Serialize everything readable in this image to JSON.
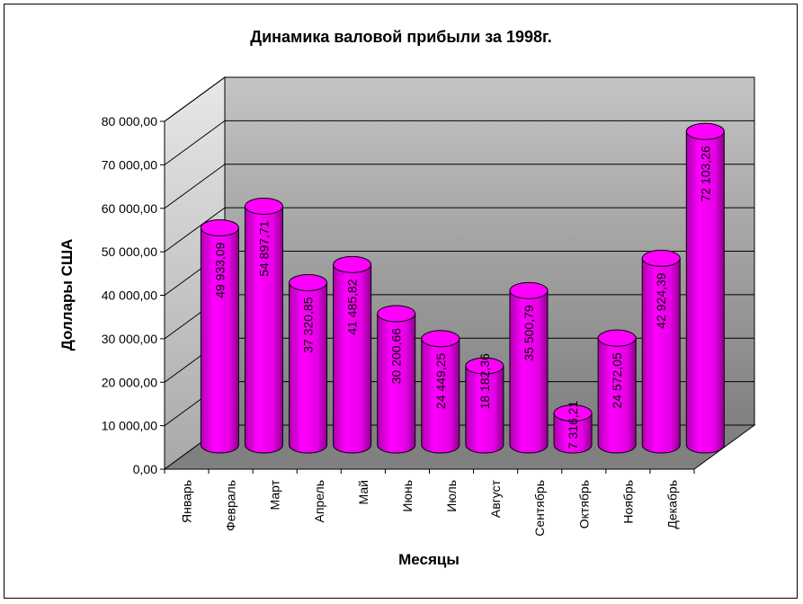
{
  "chart_data": {
    "type": "bar",
    "style": "3d-cylinder",
    "title": "Динамика валовой прибыли за 1998г.",
    "xlabel": "Месяцы",
    "ylabel": "Доллары США",
    "ylim": [
      0,
      80000
    ],
    "ytick_labels": [
      "0,00",
      "10 000,00",
      "20 000,00",
      "30 000,00",
      "40 000,00",
      "50 000,00",
      "60 000,00",
      "70 000,00",
      "80 000,00"
    ],
    "categories": [
      "Январь",
      "Февраль",
      "Март",
      "Апрель",
      "Май",
      "Июнь",
      "Июль",
      "Август",
      "Сентябрь",
      "Октябрь",
      "Ноябрь",
      "Декабрь"
    ],
    "values": [
      49933.09,
      54897.71,
      37320.85,
      41485.82,
      30200.66,
      24449.25,
      18182.36,
      35500.79,
      7316.21,
      24572.05,
      42924.39,
      72103.26
    ],
    "value_labels": [
      "49 933,09",
      "54 897,71",
      "37 320,85",
      "41 485,82",
      "30 200,66",
      "24 449,25",
      "18 182,36",
      "35 500,79",
      "7 316,21",
      "24 572,05",
      "42 924,39",
      "72 103,26"
    ],
    "grid": true,
    "legend": "none",
    "colors": {
      "bar": "#ff00ff",
      "bar_dark": "#8a008a",
      "wall": "#c0c0c0",
      "floor": "#808080",
      "side_wall": "#d9d9d9"
    }
  }
}
